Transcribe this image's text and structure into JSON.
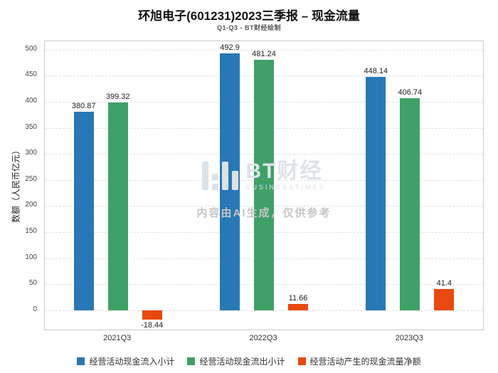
{
  "title": "环旭电子(601231)2023三季报 – 现金流量",
  "subtitle": "Q1-Q3 - BT财经绘制",
  "watermark": {
    "logo_text": "BT财经",
    "logo_sub": "BUSINESSTIMES",
    "notice": "内容由AI生成，仅供参考"
  },
  "chart_data": {
    "type": "bar",
    "categories": [
      "2021Q3",
      "2022Q3",
      "2023Q3"
    ],
    "series": [
      {
        "name": "经营活动现金流入小计",
        "color": "#2878b5",
        "values": [
          380.87,
          492.9,
          448.14
        ]
      },
      {
        "name": "经营活动现金流出小计",
        "color": "#3fa167",
        "values": [
          399.32,
          481.24,
          406.74
        ]
      },
      {
        "name": "经营活动产生的现金流量净额",
        "color": "#e8490f",
        "values": [
          -18.44,
          11.66,
          41.4
        ]
      }
    ],
    "ylabel": "数额（人民币亿元）",
    "xlabel": "",
    "yticks": [
      0,
      50,
      100,
      150,
      200,
      250,
      300,
      350,
      400,
      450,
      500
    ],
    "ylim": [
      -37,
      516
    ],
    "grid": true,
    "legend_position": "bottom"
  }
}
